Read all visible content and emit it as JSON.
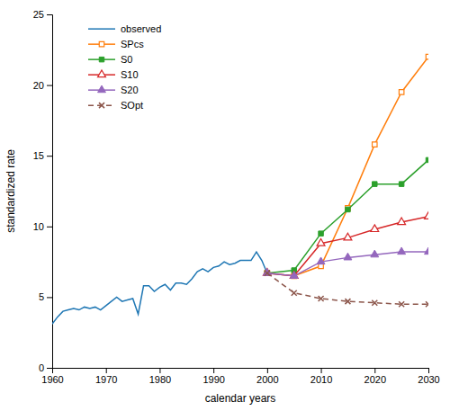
{
  "chart_data": {
    "type": "line",
    "x_label": "calendar years",
    "y_label": "standardized rate",
    "xlim": [
      1960,
      2030
    ],
    "ylim": [
      0,
      25
    ],
    "xticks": [
      1960,
      1970,
      1980,
      1990,
      2000,
      2010,
      2020,
      2030
    ],
    "yticks": [
      0,
      5,
      10,
      15,
      20,
      25
    ],
    "grid": false,
    "legend": "upper left",
    "series": [
      {
        "name": "observed",
        "marker": "none",
        "line_style": "solid",
        "x": [
          1960,
          1961,
          1962,
          1963,
          1964,
          1965,
          1966,
          1967,
          1968,
          1969,
          1970,
          1971,
          1972,
          1973,
          1974,
          1975,
          1976,
          1977,
          1978,
          1979,
          1980,
          1981,
          1982,
          1983,
          1984,
          1985,
          1986,
          1987,
          1988,
          1989,
          1990,
          1991,
          1992,
          1993,
          1994,
          1995,
          1996,
          1997,
          1998,
          1999,
          2000
        ],
        "values": [
          3.1,
          3.6,
          4.0,
          4.1,
          4.2,
          4.1,
          4.3,
          4.2,
          4.3,
          4.1,
          4.4,
          4.7,
          5.0,
          4.7,
          4.8,
          4.9,
          3.8,
          5.8,
          5.8,
          5.4,
          5.7,
          5.9,
          5.5,
          6.0,
          6.0,
          5.9,
          6.3,
          6.8,
          7.0,
          6.8,
          7.1,
          7.2,
          7.5,
          7.3,
          7.4,
          7.6,
          7.6,
          7.6,
          8.2,
          7.6,
          6.7
        ]
      },
      {
        "name": "SPcs",
        "marker": "square-open",
        "line_style": "solid",
        "x": [
          2000,
          2005,
          2010,
          2015,
          2020,
          2025,
          2030
        ],
        "values": [
          6.7,
          6.5,
          7.2,
          11.3,
          15.8,
          19.5,
          22.0
        ]
      },
      {
        "name": "S0",
        "marker": "square",
        "line_style": "solid",
        "x": [
          2000,
          2005,
          2010,
          2015,
          2020,
          2025,
          2030
        ],
        "values": [
          6.7,
          6.9,
          9.5,
          11.2,
          13.0,
          13.0,
          14.7
        ]
      },
      {
        "name": "S10",
        "marker": "triangle-open",
        "line_style": "solid",
        "x": [
          2000,
          2005,
          2010,
          2015,
          2020,
          2025,
          2030
        ],
        "values": [
          6.7,
          6.5,
          8.8,
          9.2,
          9.8,
          10.3,
          10.7
        ]
      },
      {
        "name": "S20",
        "marker": "triangle",
        "line_style": "solid",
        "x": [
          2000,
          2005,
          2010,
          2015,
          2020,
          2025,
          2030
        ],
        "values": [
          6.7,
          6.5,
          7.5,
          7.8,
          8.0,
          8.2,
          8.2
        ]
      },
      {
        "name": "SOpt",
        "marker": "x",
        "line_style": "dashed",
        "x": [
          2000,
          2005,
          2010,
          2015,
          2020,
          2025,
          2030
        ],
        "values": [
          6.7,
          5.3,
          4.9,
          4.7,
          4.6,
          4.5,
          4.5
        ]
      }
    ]
  }
}
